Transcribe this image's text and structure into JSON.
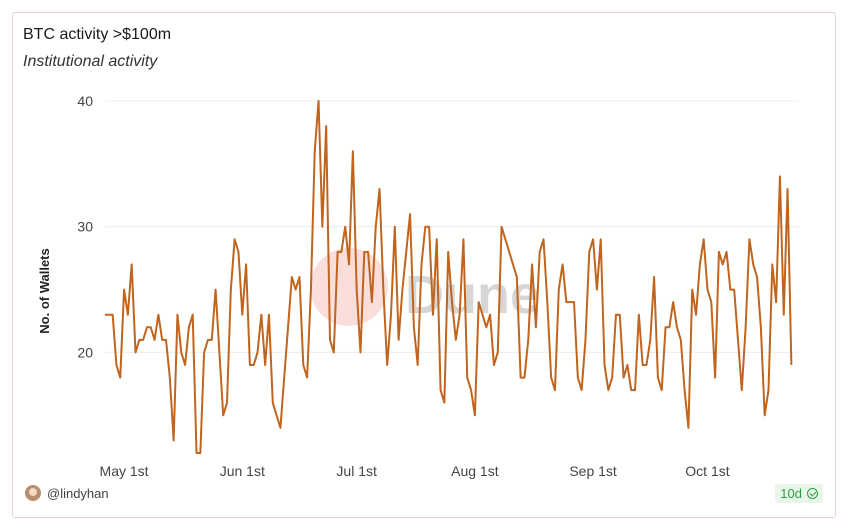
{
  "header": {
    "title": "BTC activity >$100m",
    "subtitle": "Institutional activity"
  },
  "footer": {
    "username": "@lindyhan",
    "badge": "10d"
  },
  "watermark": {
    "text": "Dune"
  },
  "colors": {
    "line": "#c0641e",
    "grid": "#ececec",
    "axis_text": "#444444",
    "watermark_circle": "#f0a9a0",
    "watermark_circle2": "#9ea6d8",
    "watermark_text": "#d6d6d6"
  },
  "chart_data": {
    "type": "line",
    "title": "BTC activity >$100m",
    "subtitle": "Institutional activity",
    "xlabel": "",
    "ylabel": "No. of Wallets",
    "x_start": "2022-04-26",
    "x_tick_labels": [
      "May 1st",
      "Jun 1st",
      "Jul 1st",
      "Aug 1st",
      "Sep 1st",
      "Oct 1st"
    ],
    "x_tick_dates": [
      "2022-05-01",
      "2022-06-01",
      "2022-07-01",
      "2022-08-01",
      "2022-09-01",
      "2022-10-01"
    ],
    "xlim": [
      "2022-04-26",
      "2022-10-25"
    ],
    "y_ticks": [
      20,
      30,
      40
    ],
    "ylim": [
      12,
      40
    ],
    "grid": true,
    "legend": "none",
    "series": [
      {
        "values": [
          23,
          23,
          23,
          19,
          18,
          25,
          23,
          27,
          20,
          21,
          21,
          22,
          22,
          21,
          23,
          21,
          21,
          18,
          13,
          23,
          20,
          19,
          22,
          23,
          12,
          12,
          20,
          21,
          21,
          25,
          20,
          15,
          16,
          25,
          29,
          28,
          23,
          27,
          19,
          19,
          20,
          23,
          19,
          23,
          16,
          15,
          14,
          18,
          22,
          26,
          25,
          26,
          19,
          18,
          25,
          36,
          40,
          30,
          38,
          21,
          20,
          28,
          28,
          30,
          27,
          36,
          25,
          20,
          28,
          28,
          24,
          30,
          33,
          25,
          19,
          23,
          30,
          21,
          25,
          28,
          31,
          22,
          19,
          27,
          30,
          30,
          23,
          29,
          17,
          16,
          28,
          24,
          21,
          23,
          29,
          18,
          17,
          15,
          24,
          23,
          22,
          23,
          19,
          20,
          30,
          29,
          28,
          27,
          26,
          18,
          18,
          21,
          27,
          22,
          28,
          29,
          24,
          18,
          17,
          25,
          27,
          24,
          24,
          24,
          18,
          17,
          21,
          28,
          29,
          25,
          29,
          19,
          17,
          18,
          23,
          23,
          18,
          19,
          17,
          17,
          23,
          19,
          19,
          21,
          26,
          18,
          17,
          22,
          22,
          24,
          22,
          21,
          17,
          14,
          25,
          23,
          27,
          29,
          25,
          24,
          18,
          28,
          27,
          28,
          25,
          25,
          21,
          17,
          22,
          29,
          27,
          26,
          22,
          15,
          17,
          27,
          24,
          34,
          23,
          33,
          19
        ]
      }
    ]
  }
}
